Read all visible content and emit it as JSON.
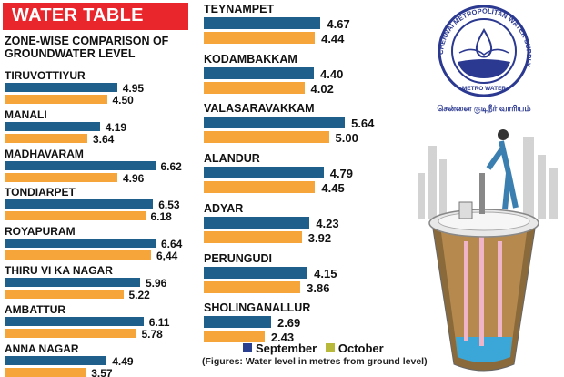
{
  "header": {
    "title": "WATER TABLE",
    "subtitle": "ZONE-WISE COMPARISON OF GROUNDWATER LEVEL"
  },
  "chart_data": {
    "type": "bar",
    "orientation": "horizontal",
    "title": "WATER TABLE",
    "subtitle": "ZONE-WISE COMPARISON OF GROUNDWATER LEVEL",
    "categories": [
      "TIRUVOTTIYUR",
      "MANALI",
      "MADHAVARAM",
      "TONDIARPET",
      "ROYAPURAM",
      "THIRU VI KA NAGAR",
      "AMBATTUR",
      "ANNA NAGAR",
      "TEYNAMPET",
      "KODAMBAKKAM",
      "VALASARAVAKKAM",
      "ALANDUR",
      "ADYAR",
      "PERUNGUDI",
      "SHOLINGANALLUR"
    ],
    "series": [
      {
        "name": "September",
        "color": "#1f5f8b",
        "values": [
          4.95,
          4.19,
          6.62,
          6.53,
          6.64,
          5.96,
          6.11,
          4.49,
          4.67,
          4.4,
          5.64,
          4.79,
          4.23,
          4.15,
          2.69
        ],
        "labels": [
          "4.95",
          "4.19",
          "6.62",
          "6.53",
          "6.64",
          "5.96",
          "6.11",
          "4.49",
          "4.67",
          "4.40",
          "5.64",
          "4.79",
          "4.23",
          "4.15",
          "2.69"
        ]
      },
      {
        "name": "October",
        "color": "#f5a53a",
        "values": [
          4.5,
          3.64,
          4.96,
          6.18,
          6.44,
          5.22,
          5.78,
          3.57,
          4.44,
          4.02,
          5.0,
          4.45,
          3.92,
          3.86,
          2.43
        ],
        "labels": [
          "4.50",
          "3.64",
          "4.96",
          "6.18",
          "6,44",
          "5.22",
          "5.78",
          "3.57",
          "4.44",
          "4.02",
          "5.00",
          "4.45",
          "3.92",
          "3.86",
          "2.43"
        ]
      }
    ],
    "legend": {
      "position": "bottom",
      "legend_colors": [
        "#2a3f8f",
        "#b8b83a"
      ]
    },
    "footnote": "(Figures: Water level in metres from ground level)",
    "grid": false
  },
  "logo": {
    "ring_text": "CHENNAI METROPOLITAN WATER SUPPLY AND SEWERAGE BOARD",
    "inner_text": "METRO WATER",
    "tamil_text": "சென்னை குடிநீர் வாரியம்"
  },
  "colors": {
    "header": "#e8262b",
    "logo": "#2b3990"
  }
}
